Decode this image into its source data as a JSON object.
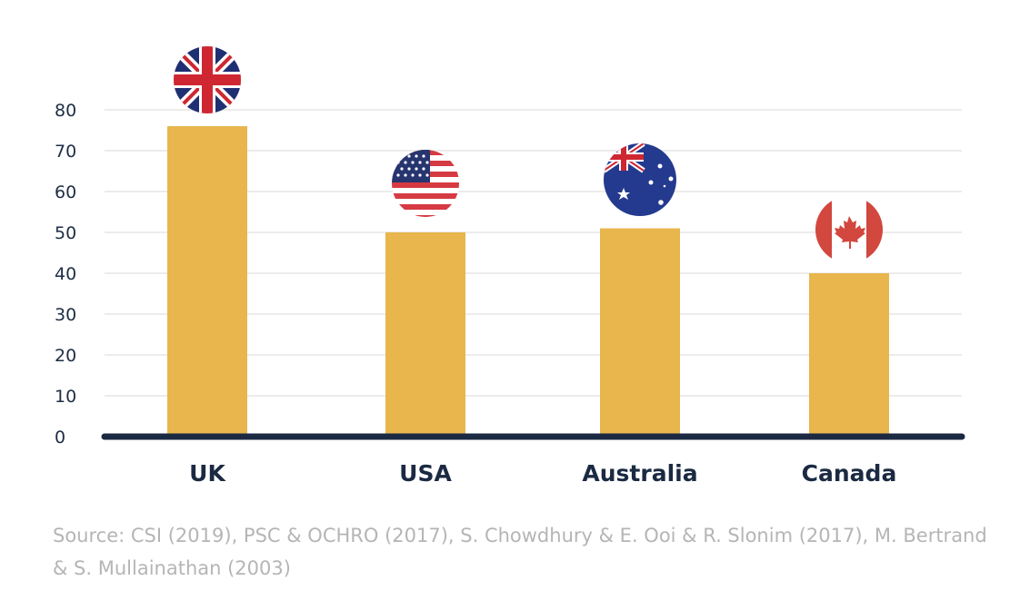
{
  "chart_data": {
    "type": "bar",
    "title": "",
    "xlabel": "",
    "ylabel": "",
    "categories": [
      "UK",
      "USA",
      "Australia",
      "Canada"
    ],
    "values": [
      76,
      50,
      51,
      40
    ],
    "ylim": [
      0,
      80
    ],
    "yticks": [
      0,
      10,
      20,
      30,
      40,
      50,
      60,
      70,
      80
    ],
    "grid": true,
    "legend": "none",
    "bar_color": "#e8b64d",
    "axis_color": "#1b2a42",
    "flag_icons": [
      "uk-flag-icon",
      "usa-flag-icon",
      "australia-flag-icon",
      "canada-flag-icon"
    ]
  },
  "source": "Source: CSI (2019), PSC & OCHRO (2017), S. Chowdhury & E. Ooi & R. Slonim (2017), M. Bertrand & S. Mullainathan (2003)"
}
